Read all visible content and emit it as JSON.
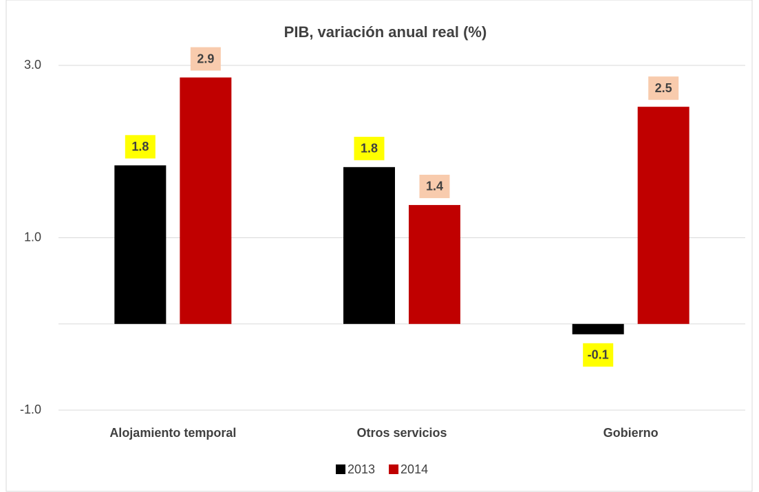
{
  "chart_data": {
    "type": "bar",
    "title": "PIB, variación anual real (%)",
    "categories": [
      "Alojamiento temporal",
      "Otros servicios",
      "Gobierno"
    ],
    "series": [
      {
        "name": "2013",
        "color": "#000000",
        "label_background": "#ffff00",
        "values": [
          1.84,
          1.82,
          -0.12
        ],
        "value_labels": [
          "1.8",
          "1.8",
          "-0.1"
        ]
      },
      {
        "name": "2014",
        "color": "#c00000",
        "label_background": "#f8cbad",
        "values": [
          2.86,
          1.38,
          2.52
        ],
        "value_labels": [
          "2.9",
          "1.4",
          "2.5"
        ]
      }
    ],
    "ylim": [
      -1,
      3.2
    ],
    "yticks": [
      {
        "value": -1,
        "label": "-1.0"
      },
      {
        "value": 1,
        "label": "1.0"
      },
      {
        "value": 3,
        "label": "3.0"
      }
    ],
    "grid": true,
    "legend": "bottom"
  }
}
